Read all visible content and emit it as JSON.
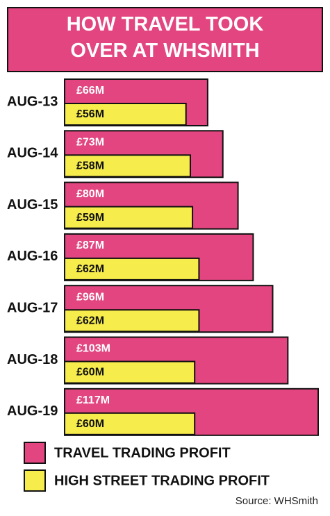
{
  "chart_data": {
    "type": "bar",
    "title": "HOW TRAVEL TOOK OVER AT WHSMITH",
    "categories": [
      "AUG-13",
      "AUG-14",
      "AUG-15",
      "AUG-16",
      "AUG-17",
      "AUG-18",
      "AUG-19"
    ],
    "series": [
      {
        "name": "TRAVEL TRADING PROFIT",
        "color": "#e2457f",
        "values": [
          66,
          73,
          80,
          87,
          96,
          103,
          117
        ],
        "value_labels": [
          "£66M",
          "£73M",
          "£80M",
          "£87M",
          "£96M",
          "£103M",
          "£117M"
        ]
      },
      {
        "name": "HIGH STREET TRADING PROFIT",
        "color": "#f6ec4c",
        "values": [
          56,
          58,
          59,
          62,
          62,
          60,
          60
        ],
        "value_labels": [
          "£56M",
          "£58M",
          "£59M",
          "£62M",
          "£62M",
          "£60M",
          "£60M"
        ]
      }
    ],
    "source": "Source: WHSmith"
  }
}
